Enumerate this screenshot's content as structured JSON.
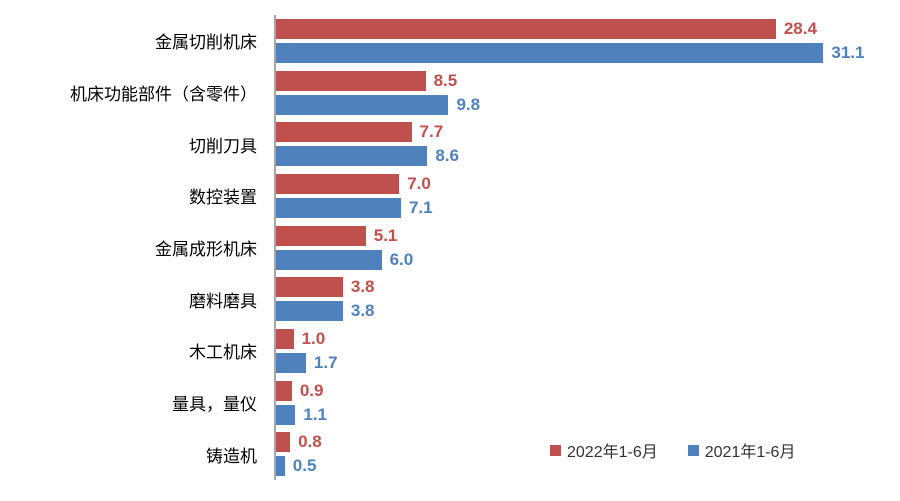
{
  "chart_data": {
    "type": "bar",
    "orientation": "horizontal",
    "title": "",
    "xlabel": "",
    "ylabel": "",
    "xlim": [
      0,
      35
    ],
    "grid": false,
    "legend_position": "bottom-right",
    "value_label_decimals": 1,
    "axis_color": "#a6a6a6",
    "categories": [
      "金属切削机床",
      "机床功能部件（含零件）",
      "切削刀具",
      "数控装置",
      "金属成形机床",
      "磨料磨具",
      "木工机床",
      "量具，量仪",
      "铸造机"
    ],
    "series": [
      {
        "name": "2022年1-6月",
        "color": "#C0504D",
        "values": [
          28.4,
          8.5,
          7.7,
          7.0,
          5.1,
          3.8,
          1.0,
          0.9,
          0.8
        ]
      },
      {
        "name": "2021年1-6月",
        "color": "#4F81BD",
        "values": [
          31.1,
          9.8,
          8.6,
          7.1,
          6.0,
          3.8,
          1.7,
          1.1,
          0.5
        ]
      }
    ]
  }
}
